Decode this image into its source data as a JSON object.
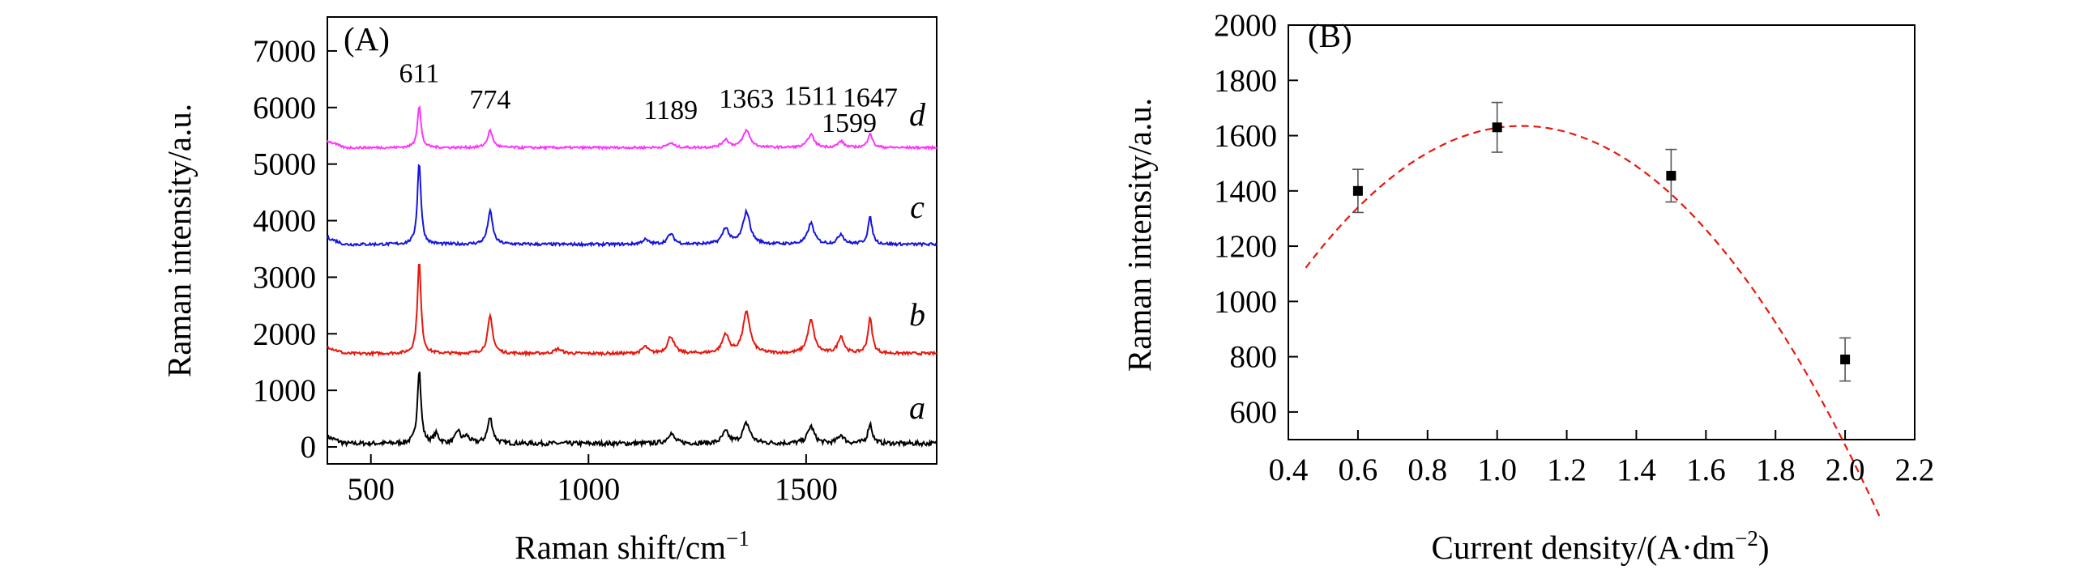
{
  "chart_data": [
    {
      "type": "line",
      "panel_label": "(A)",
      "xlabel": "Raman shift/cm",
      "xlabel_sup": "−1",
      "ylabel": "Raman intensity/a.u.",
      "xlim": [
        400,
        1800
      ],
      "ylim": [
        -300,
        7600
      ],
      "xticks": [
        500,
        1000,
        1500
      ],
      "yticks": [
        0,
        1000,
        2000,
        3000,
        4000,
        5000,
        6000,
        7000
      ],
      "xtick_labels": [
        "500",
        "1000",
        "1500"
      ],
      "ytick_labels": [
        "0",
        "1000",
        "2000",
        "3000",
        "4000",
        "5000",
        "6000",
        "7000"
      ],
      "peak_positions": [
        611,
        774,
        1189,
        1363,
        1511,
        1599,
        1647
      ],
      "peak_labels": [
        {
          "text": "611",
          "x": 611,
          "y": 6450
        },
        {
          "text": "774",
          "x": 774,
          "y": 5980
        },
        {
          "text": "1189",
          "x": 1189,
          "y": 5800
        },
        {
          "text": "1363",
          "x": 1363,
          "y": 6000
        },
        {
          "text": "1511",
          "x": 1511,
          "y": 6050
        },
        {
          "text": "1599",
          "x": 1599,
          "y": 5570
        },
        {
          "text": "1647",
          "x": 1647,
          "y": 6020
        }
      ],
      "series": [
        {
          "name": "a",
          "label": "a",
          "color": "#000000",
          "baseline": 60,
          "noise": 40,
          "label_y": 500,
          "peaks": [
            [
              611,
              1300,
              5
            ],
            [
              650,
              160,
              7
            ],
            [
              700,
              220,
              6
            ],
            [
              720,
              120,
              8
            ],
            [
              774,
              450,
              7
            ],
            [
              1189,
              180,
              9
            ],
            [
              1315,
              200,
              9
            ],
            [
              1363,
              350,
              10
            ],
            [
              1511,
              300,
              9
            ],
            [
              1580,
              150,
              8
            ],
            [
              1647,
              350,
              6
            ]
          ]
        },
        {
          "name": "b",
          "label": "b",
          "color": "#e8170c",
          "baseline": 1650,
          "noise": 25,
          "label_y": 2150,
          "peaks": [
            [
              611,
              1620,
              5
            ],
            [
              774,
              650,
              7
            ],
            [
              930,
              80,
              10
            ],
            [
              1130,
              120,
              8
            ],
            [
              1189,
              300,
              9
            ],
            [
              1315,
              330,
              9
            ],
            [
              1363,
              720,
              10
            ],
            [
              1511,
              580,
              9
            ],
            [
              1580,
              300,
              8
            ],
            [
              1647,
              620,
              6
            ]
          ]
        },
        {
          "name": "c",
          "label": "c",
          "color": "#1515e0",
          "baseline": 3580,
          "noise": 25,
          "label_y": 4050,
          "peaks": [
            [
              611,
              1450,
              5
            ],
            [
              774,
              580,
              7
            ],
            [
              1130,
              80,
              9
            ],
            [
              1189,
              180,
              9
            ],
            [
              1315,
              280,
              9
            ],
            [
              1363,
              570,
              10
            ],
            [
              1511,
              370,
              9
            ],
            [
              1580,
              180,
              8
            ],
            [
              1647,
              470,
              6
            ]
          ]
        },
        {
          "name": "d",
          "label": "d",
          "color": "#ff33ff",
          "baseline": 5290,
          "noise": 20,
          "label_y": 5680,
          "peaks": [
            [
              611,
              740,
              5
            ],
            [
              774,
              300,
              7
            ],
            [
              1189,
              80,
              9
            ],
            [
              1315,
              140,
              9
            ],
            [
              1363,
              300,
              10
            ],
            [
              1511,
              230,
              9
            ],
            [
              1580,
              110,
              8
            ],
            [
              1647,
              260,
              6
            ]
          ]
        }
      ]
    },
    {
      "type": "scatter",
      "panel_label": "(B)",
      "xlabel": "Current density/(A·dm",
      "xlabel_sup": "−2",
      "xlabel_tail": ")",
      "ylabel": "Raman intensity/a.u.",
      "xlim": [
        0.4,
        2.2
      ],
      "ylim": [
        500,
        2000
      ],
      "xticks": [
        0.4,
        0.6,
        0.8,
        1.0,
        1.2,
        1.4,
        1.6,
        1.8,
        2.0,
        2.2
      ],
      "yticks": [
        600,
        800,
        1000,
        1200,
        1400,
        1600,
        1800,
        2000
      ],
      "xtick_labels": [
        "0.4",
        "0.6",
        "0.8",
        "1.0",
        "1.2",
        "1.4",
        "1.6",
        "1.8",
        "2.0",
        "2.2"
      ],
      "ytick_labels": [
        "600",
        "800",
        "1000",
        "1200",
        "1400",
        "1600",
        "1800",
        "2000"
      ],
      "points": [
        {
          "x": 0.6,
          "y": 1400,
          "err": 78
        },
        {
          "x": 1.0,
          "y": 1630,
          "err": 90
        },
        {
          "x": 1.5,
          "y": 1455,
          "err": 95
        },
        {
          "x": 2.0,
          "y": 790,
          "err": 78
        }
      ],
      "fit": {
        "style": "dashed",
        "color": "#e8170c",
        "x_start": 0.45,
        "x_end": 2.1,
        "vertex_x": 1.07,
        "vertex_y": 1635,
        "a": -1335
      }
    }
  ]
}
